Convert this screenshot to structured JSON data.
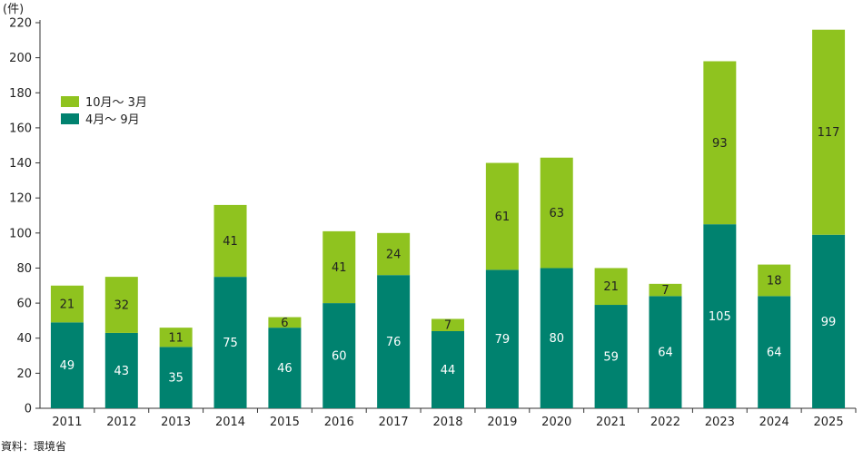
{
  "chart_data": {
    "type": "bar",
    "stacked": true,
    "y_unit_label": "(件)",
    "ylim": [
      0,
      220
    ],
    "yticks": [
      0,
      20,
      40,
      60,
      80,
      100,
      120,
      140,
      160,
      180,
      200,
      220
    ],
    "categories": [
      "2011",
      "2012",
      "2013",
      "2014",
      "2015",
      "2016",
      "2017",
      "2018",
      "2019",
      "2020",
      "2021",
      "2022",
      "2023",
      "2024",
      "2025"
    ],
    "series": [
      {
        "name": "4月～ 9月",
        "color": "#00826f",
        "label_color": "#ffffff",
        "values": [
          49,
          43,
          35,
          75,
          46,
          60,
          76,
          44,
          79,
          80,
          59,
          64,
          105,
          64,
          99
        ]
      },
      {
        "name": "10月～ 3月",
        "color": "#8fc31f",
        "label_color": "#222222",
        "values": [
          21,
          32,
          11,
          41,
          6,
          41,
          24,
          7,
          61,
          63,
          21,
          7,
          93,
          18,
          117
        ]
      }
    ],
    "legend_position": "top-left",
    "grid": false
  },
  "source": "資料：環境省"
}
